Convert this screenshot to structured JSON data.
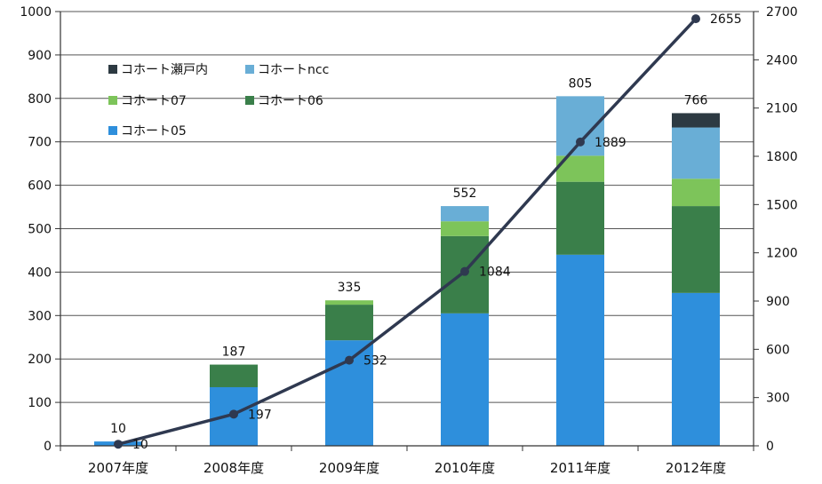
{
  "chart_data": {
    "type": "bar",
    "stacked": true,
    "categories": [
      "2007年度",
      "2008年度",
      "2009年度",
      "2010年度",
      "2011年度",
      "2012年度"
    ],
    "series": [
      {
        "name": "コホート05",
        "color": "#2e8fdc",
        "values": [
          10,
          135,
          243,
          305,
          440,
          352
        ]
      },
      {
        "name": "コホート06",
        "color": "#3a7f4a",
        "values": [
          0,
          52,
          82,
          178,
          168,
          200
        ]
      },
      {
        "name": "コホート07",
        "color": "#7dc45a",
        "values": [
          0,
          0,
          10,
          34,
          60,
          63
        ]
      },
      {
        "name": "コホートncc",
        "color": "#69aed6",
        "values": [
          0,
          0,
          0,
          35,
          137,
          118
        ]
      },
      {
        "name": "コホート瀬戸内",
        "color": "#2d3a42",
        "values": [
          0,
          0,
          0,
          0,
          0,
          33
        ]
      }
    ],
    "totals": [
      "10",
      "187",
      "335",
      "552",
      "805",
      "766"
    ],
    "line": {
      "values": [
        10,
        197,
        532,
        1084,
        1889,
        2655
      ],
      "labels": [
        "10",
        "197",
        "532",
        "1084",
        "1889",
        "2655"
      ],
      "color": "#2f3950",
      "axis": "right"
    },
    "y_left": {
      "lim": [
        0,
        1000
      ],
      "ticks": [
        "0",
        "100",
        "200",
        "300",
        "400",
        "500",
        "600",
        "700",
        "800",
        "900",
        "1000"
      ]
    },
    "y_right": {
      "lim": [
        0,
        2700
      ],
      "ticks": [
        "0",
        "300",
        "600",
        "900",
        "1200",
        "1500",
        "1800",
        "2100",
        "2400",
        "2700"
      ]
    },
    "legend": [
      {
        "label": "コホート瀬戸内",
        "color": "#2d3a42"
      },
      {
        "label": "コホートncc",
        "color": "#69aed6"
      },
      {
        "label": "コホート07",
        "color": "#7dc45a"
      },
      {
        "label": "コホート06",
        "color": "#3a7f4a"
      },
      {
        "label": "コホート05",
        "color": "#2e8fdc"
      }
    ],
    "legend_position": "top-left",
    "grid": true
  }
}
